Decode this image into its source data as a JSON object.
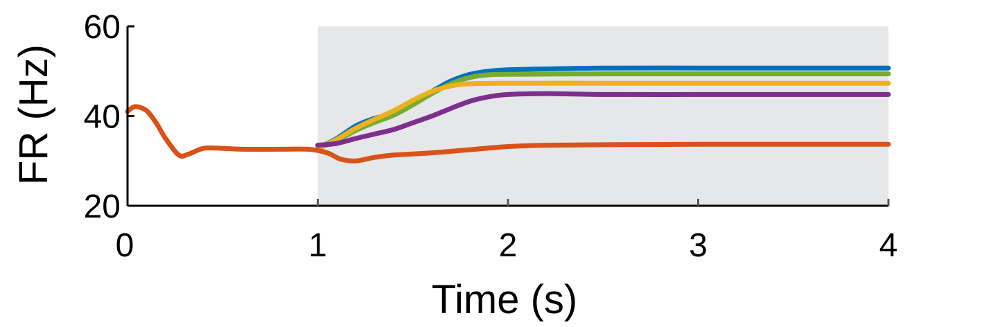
{
  "chart_data": {
    "type": "line",
    "xlabel": "Time (s)",
    "ylabel": "FR (Hz)",
    "xlim": [
      0,
      4
    ],
    "ylim": [
      20,
      60
    ],
    "xticks": [
      0,
      1,
      2,
      3,
      4
    ],
    "yticks": [
      20,
      40,
      60
    ],
    "shaded_region": {
      "x": [
        1,
        4
      ],
      "color": "#e6e7e9"
    },
    "grid": false,
    "legend": "none",
    "series": [
      {
        "color": "#0072bd",
        "points": [
          [
            1.0,
            32.8
          ],
          [
            1.1,
            35.0
          ],
          [
            1.2,
            37.8
          ],
          [
            1.3,
            39.5
          ],
          [
            1.4,
            40.5
          ],
          [
            1.5,
            43.0
          ],
          [
            1.6,
            45.5
          ],
          [
            1.7,
            47.8
          ],
          [
            1.8,
            49.3
          ],
          [
            1.9,
            50.0
          ],
          [
            2.0,
            50.3
          ],
          [
            2.2,
            50.5
          ],
          [
            2.5,
            50.7
          ],
          [
            3.0,
            50.7
          ],
          [
            3.5,
            50.7
          ],
          [
            4.0,
            50.7
          ]
        ]
      },
      {
        "color": "#77ac30",
        "points": [
          [
            1.0,
            32.8
          ],
          [
            1.1,
            34.5
          ],
          [
            1.2,
            36.8
          ],
          [
            1.3,
            38.6
          ],
          [
            1.4,
            40.2
          ],
          [
            1.5,
            42.5
          ],
          [
            1.6,
            45.0
          ],
          [
            1.7,
            47.2
          ],
          [
            1.8,
            48.6
          ],
          [
            1.9,
            49.2
          ],
          [
            2.0,
            49.3
          ],
          [
            2.5,
            49.4
          ],
          [
            3.0,
            49.4
          ],
          [
            3.5,
            49.4
          ],
          [
            4.0,
            49.4
          ]
        ]
      },
      {
        "color": "#edb120",
        "points": [
          [
            1.0,
            32.8
          ],
          [
            1.1,
            34.8
          ],
          [
            1.2,
            37.3
          ],
          [
            1.3,
            39.3
          ],
          [
            1.4,
            41.2
          ],
          [
            1.5,
            43.5
          ],
          [
            1.6,
            45.5
          ],
          [
            1.7,
            46.7
          ],
          [
            1.8,
            47.2
          ],
          [
            2.0,
            47.3
          ],
          [
            2.5,
            47.3
          ],
          [
            3.0,
            47.3
          ],
          [
            3.5,
            47.3
          ],
          [
            4.0,
            47.3
          ]
        ]
      },
      {
        "color": "#7e2f8e",
        "points": [
          [
            1.0,
            33.5
          ],
          [
            1.1,
            33.9
          ],
          [
            1.2,
            35.0
          ],
          [
            1.3,
            36.0
          ],
          [
            1.4,
            37.0
          ],
          [
            1.5,
            38.5
          ],
          [
            1.6,
            40.0
          ],
          [
            1.7,
            41.7
          ],
          [
            1.8,
            43.3
          ],
          [
            1.9,
            44.3
          ],
          [
            2.0,
            44.8
          ],
          [
            2.2,
            45.0
          ],
          [
            2.5,
            44.8
          ],
          [
            3.0,
            44.8
          ],
          [
            3.5,
            44.8
          ],
          [
            4.0,
            44.8
          ]
        ]
      },
      {
        "color": "#d95319",
        "points": [
          [
            0.0,
            41.0
          ],
          [
            0.04,
            42.1
          ],
          [
            0.1,
            41.2
          ],
          [
            0.15,
            38.5
          ],
          [
            0.2,
            35.0
          ],
          [
            0.27,
            31.3
          ],
          [
            0.32,
            31.5
          ],
          [
            0.4,
            32.8
          ],
          [
            0.5,
            32.8
          ],
          [
            0.6,
            32.6
          ],
          [
            0.8,
            32.6
          ],
          [
            0.95,
            32.6
          ],
          [
            1.05,
            31.8
          ],
          [
            1.12,
            30.4
          ],
          [
            1.2,
            30.0
          ],
          [
            1.3,
            30.8
          ],
          [
            1.4,
            31.3
          ],
          [
            1.6,
            31.8
          ],
          [
            1.8,
            32.5
          ],
          [
            2.0,
            33.2
          ],
          [
            2.2,
            33.5
          ],
          [
            2.5,
            33.6
          ],
          [
            3.0,
            33.7
          ],
          [
            3.5,
            33.7
          ],
          [
            4.0,
            33.7
          ]
        ]
      }
    ]
  }
}
